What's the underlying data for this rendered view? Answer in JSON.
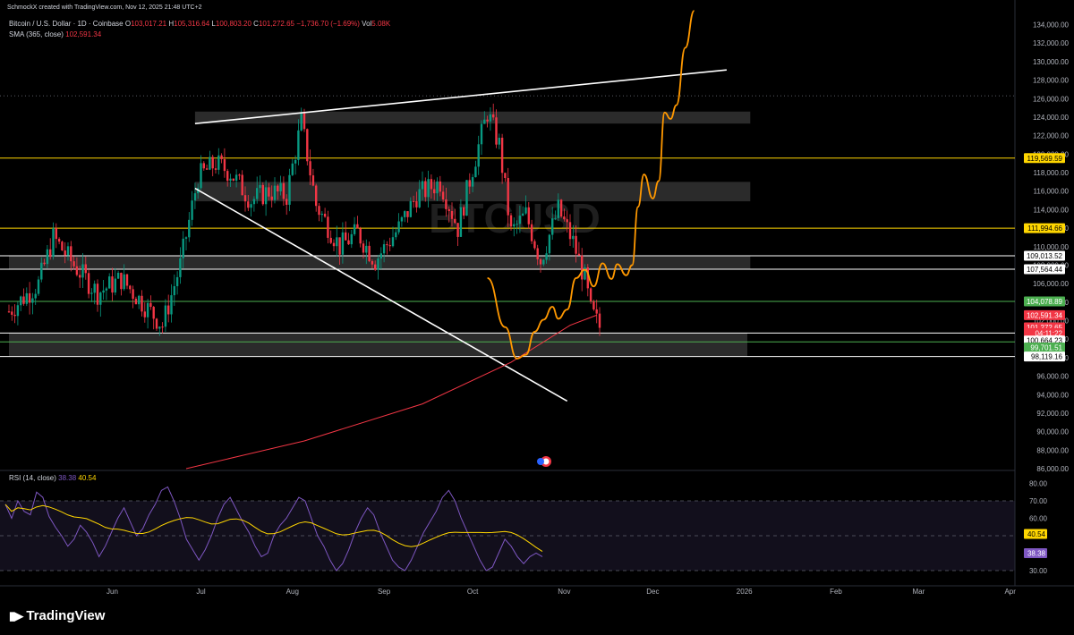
{
  "header": {
    "credit": "SchmockX created with TradingView.com, Nov 12, 2025 21:48 UTC+2",
    "symbol": "Bitcoin / U.S. Dollar · 1D · Coinbase",
    "open_label": "O",
    "open": "103,017.21",
    "high_label": "H",
    "high": "105,316.64",
    "low_label": "L",
    "low": "100,803.20",
    "close_label": "C",
    "close": "101,272.65",
    "change": "−1,736.70 (−1.69%)",
    "vol_label": "Vol",
    "vol": "5.08K",
    "sma_label": "SMA (365, close)",
    "sma_value": "102,591.34"
  },
  "watermark": "BTCUSD",
  "rsi": {
    "label": "RSI (14, close)",
    "value": "38.38",
    "ma_value": "40.54",
    "axis_ticks": [
      "80.00",
      "70.00",
      "60.00",
      "50.00",
      "40.00",
      "30.00"
    ],
    "badge_ma": "40.54",
    "badge_rsi": "38.38"
  },
  "price_badges": [
    {
      "text": "119,569.59",
      "bg": "#ffd600",
      "fg": "#000000",
      "price": 119569.59
    },
    {
      "text": "111,994.66",
      "bg": "#ffd600",
      "fg": "#000000",
      "price": 111994.66
    },
    {
      "text": "109,013.52",
      "bg": "#ffffff",
      "fg": "#000000",
      "price": 109013.52
    },
    {
      "text": "107,564.44",
      "bg": "#ffffff",
      "fg": "#000000",
      "price": 107564.44
    },
    {
      "text": "104,078.89",
      "bg": "#4caf50",
      "fg": "#ffffff",
      "price": 104078.89
    },
    {
      "text": "102,591.34",
      "bg": "#f23645",
      "fg": "#ffffff",
      "price": 102591.34
    },
    {
      "text": "101,272.65",
      "bg": "#f23645",
      "fg": "#ffffff",
      "price": 101272.65
    },
    {
      "text": "04:11:22",
      "bg": "#f23645",
      "fg": "#ffffff",
      "price": 100650
    },
    {
      "text": "100,664.23",
      "bg": "#ffffff",
      "fg": "#000000",
      "price": 99850
    },
    {
      "text": "99,701.51",
      "bg": "#4caf50",
      "fg": "#ffffff",
      "price": 99101.51
    },
    {
      "text": "98,119.16",
      "bg": "#ffffff",
      "fg": "#000000",
      "price": 98119.16
    }
  ],
  "footer": {
    "brand": "TradingView"
  },
  "colors": {
    "up": "#089981",
    "down": "#f23645",
    "projection": "#ff9800",
    "sma": "#f23645",
    "rsi": "#7e57c2",
    "rsi_ma": "#ffd600"
  },
  "chart_data": {
    "type": "candlestick",
    "title": "Bitcoin / U.S. Dollar · 1D · Coinbase",
    "y_axis_ticks": [
      86000,
      88000,
      90000,
      92000,
      94000,
      96000,
      98000,
      100000,
      102000,
      104000,
      106000,
      108000,
      110000,
      112000,
      114000,
      116000,
      118000,
      120000,
      122000,
      124000,
      126000,
      128000,
      130000,
      132000,
      134000
    ],
    "y_tick_labels": [
      "86,000.00",
      "88,000.00",
      "90,000.00",
      "92,000.00",
      "94,000.00",
      "96,000.00",
      "98,000.00",
      "100,000.00",
      "102,000.00",
      "104,000.00",
      "106,000.00",
      "108,000.00",
      "110,000.00",
      "112,000.00",
      "114,000.00",
      "116,000.00",
      "118,000.00",
      "120,000.00",
      "122,000.00",
      "124,000.00",
      "126,000.00",
      "128,000.00",
      "130,000.00",
      "132,000.00",
      "134,000.00"
    ],
    "ylim": [
      86000,
      135500
    ],
    "x_labels": [
      "Jun",
      "Jul",
      "Aug",
      "Sep",
      "Oct",
      "Nov",
      "Dec",
      "2026",
      "Feb",
      "Mar",
      "Apr"
    ],
    "x_label_days": [
      35,
      65,
      96,
      127,
      157,
      188,
      218,
      249,
      280,
      308,
      339
    ],
    "x_start_date": "2025-04-27",
    "horizontal_levels": [
      {
        "price": 119569.59,
        "color": "#ffd600"
      },
      {
        "price": 111994.66,
        "color": "#ffd600"
      },
      {
        "price": 109013.52,
        "color": "#ffffff"
      },
      {
        "price": 107564.44,
        "color": "#ffffff"
      },
      {
        "price": 104078.89,
        "color": "#4caf50"
      },
      {
        "price": 100664.23,
        "color": "#ffffff"
      },
      {
        "price": 99701.51,
        "color": "#4caf50"
      },
      {
        "price": 98119.16,
        "color": "#ffffff"
      }
    ],
    "zones": [
      {
        "from_day": 63,
        "to_day": 251,
        "low": 123300,
        "high": 124600
      },
      {
        "from_day": 63,
        "to_day": 251,
        "low": 114900,
        "high": 117000
      },
      {
        "from_day": 0,
        "to_day": 251,
        "low": 107600,
        "high": 109000
      },
      {
        "from_day": 0,
        "to_day": 250,
        "low": 98150,
        "high": 100700
      }
    ],
    "trendlines": [
      {
        "name": "upper",
        "from": [
          63,
          123300
        ],
        "to": [
          243,
          129100
        ],
        "color": "#ffffff"
      },
      {
        "name": "lower",
        "from": [
          63,
          116300
        ],
        "to": [
          189,
          93300
        ],
        "color": "#ffffff"
      }
    ],
    "dotted_level": 126300,
    "sma_365": [
      [
        60,
        86000
      ],
      [
        100,
        89000
      ],
      [
        140,
        93000
      ],
      [
        170,
        97500
      ],
      [
        190,
        101500
      ],
      [
        199,
        102591
      ]
    ],
    "projection": [
      [
        162,
        106600
      ],
      [
        168,
        101300
      ],
      [
        172,
        97900
      ],
      [
        175,
        98300
      ],
      [
        178,
        100800
      ],
      [
        181,
        102100
      ],
      [
        184,
        103500
      ],
      [
        186,
        102200
      ],
      [
        189,
        103200
      ],
      [
        192,
        106600
      ],
      [
        195,
        107500
      ],
      [
        198,
        105700
      ],
      [
        201,
        108200
      ],
      [
        204,
        106500
      ],
      [
        206,
        108100
      ],
      [
        209,
        106900
      ],
      [
        211,
        108000
      ],
      [
        213,
        114300
      ],
      [
        215,
        117800
      ],
      [
        218,
        115200
      ],
      [
        220,
        117100
      ],
      [
        222,
        124500
      ],
      [
        224,
        123800
      ],
      [
        226,
        125300
      ],
      [
        229,
        131500
      ],
      [
        232,
        135500
      ]
    ],
    "candles_ohlc_summary": [
      {
        "month": "May",
        "low": 98200,
        "high": 111900
      },
      {
        "month": "Jun",
        "low": 98200,
        "high": 110600
      },
      {
        "month": "Jul",
        "low": 105100,
        "high": 123300
      },
      {
        "month": "Aug",
        "low": 108700,
        "high": 124400
      },
      {
        "month": "Sep",
        "low": 107300,
        "high": 117900
      },
      {
        "month": "Oct",
        "low": 103500,
        "high": 126200
      },
      {
        "month": "Nov",
        "low": 98900,
        "high": 107500
      }
    ],
    "rsi_series_approx": [
      68,
      60,
      70,
      64,
      62,
      75,
      72,
      61,
      55,
      50,
      44,
      48,
      56,
      52,
      46,
      38,
      44,
      52,
      60,
      66,
      58,
      50,
      54,
      62,
      68,
      76,
      78,
      70,
      60,
      48,
      42,
      36,
      42,
      50,
      60,
      68,
      72,
      65,
      58,
      52,
      44,
      38,
      40,
      50,
      56,
      60,
      66,
      72,
      70,
      60,
      50,
      44,
      36,
      30,
      34,
      42,
      52,
      60,
      66,
      62,
      52,
      44,
      36,
      32,
      30,
      36,
      44,
      52,
      58,
      64,
      72,
      76,
      70,
      60,
      52,
      44,
      36,
      30,
      32,
      40,
      48,
      44,
      38,
      34,
      38,
      40,
      38
    ]
  }
}
